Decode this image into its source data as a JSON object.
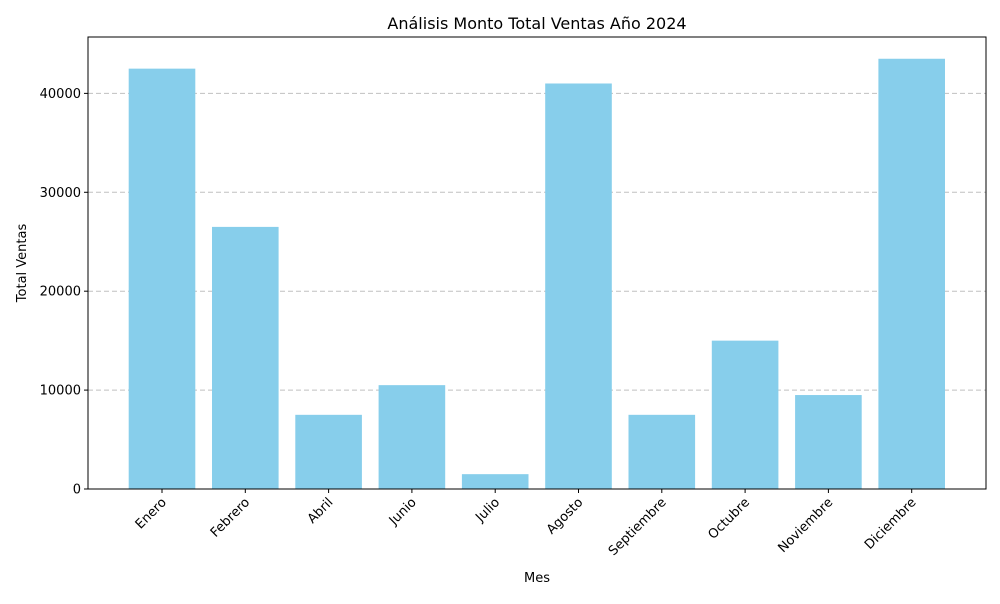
{
  "chart_data": {
    "type": "bar",
    "title": "Análisis Monto Total Ventas Año 2024",
    "xlabel": "Mes",
    "ylabel": "Total Ventas",
    "categories": [
      "Enero",
      "Febrero",
      "Abril",
      "Junio",
      "Julio",
      "Agosto",
      "Septiembre",
      "Octubre",
      "Noviembre",
      "Diciembre"
    ],
    "values": [
      42500,
      26500,
      7500,
      10500,
      1500,
      41000,
      7500,
      15000,
      9500,
      43500
    ],
    "ylim": [
      0,
      45700
    ],
    "yticks": [
      0,
      10000,
      20000,
      30000,
      40000
    ],
    "grid": "y-axis dashed",
    "bar_color": "#87ceeb",
    "grid_color": "#c0c0c0"
  }
}
